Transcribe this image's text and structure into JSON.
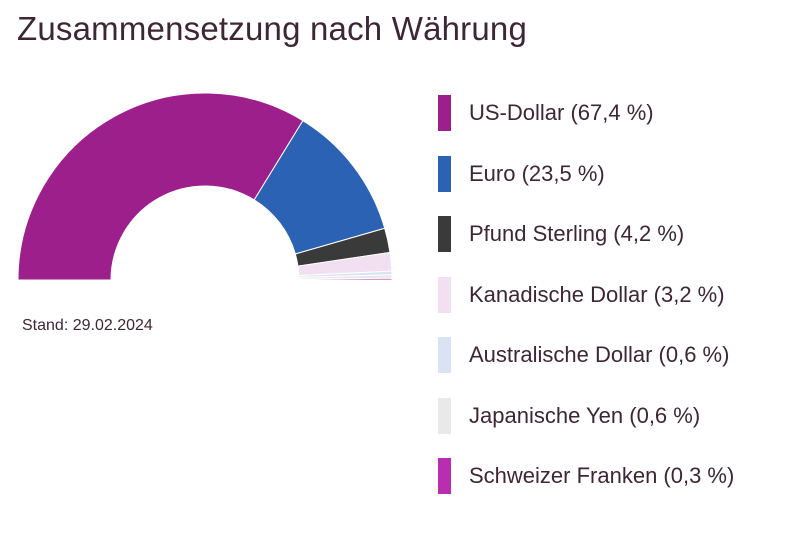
{
  "title": "Zusammensetzung nach Währung",
  "stand": "Stand: 29.02.2024",
  "chart_data": {
    "type": "pie",
    "variant": "half-donut",
    "title": "Zusammensetzung nach Währung",
    "slices": [
      {
        "name": "US-Dollar",
        "value": 67.4,
        "label": "US-Dollar (67,4 %)",
        "color": "#9d1f8c"
      },
      {
        "name": "Euro",
        "value": 23.5,
        "label": "Euro (23,5 %)",
        "color": "#2c62b4"
      },
      {
        "name": "Pfund Sterling",
        "value": 4.2,
        "label": "Pfund Sterling (4,2 %)",
        "color": "#3a3a3a"
      },
      {
        "name": "Kanadische Dollar",
        "value": 3.2,
        "label": "Kanadische Dollar (3,2 %)",
        "color": "#f2dff2"
      },
      {
        "name": "Australische Dollar",
        "value": 0.6,
        "label": "Australische Dollar (0,6 %)",
        "color": "#d9e3f3"
      },
      {
        "name": "Japanische Yen",
        "value": 0.6,
        "label": "Japanische Yen (0,6 %)",
        "color": "#e9e9e9"
      },
      {
        "name": "Schweizer Franken",
        "value": 0.3,
        "label": "Schweizer Franken (0,3 %)",
        "color": "#b92db0"
      }
    ],
    "legend_position": "right"
  }
}
